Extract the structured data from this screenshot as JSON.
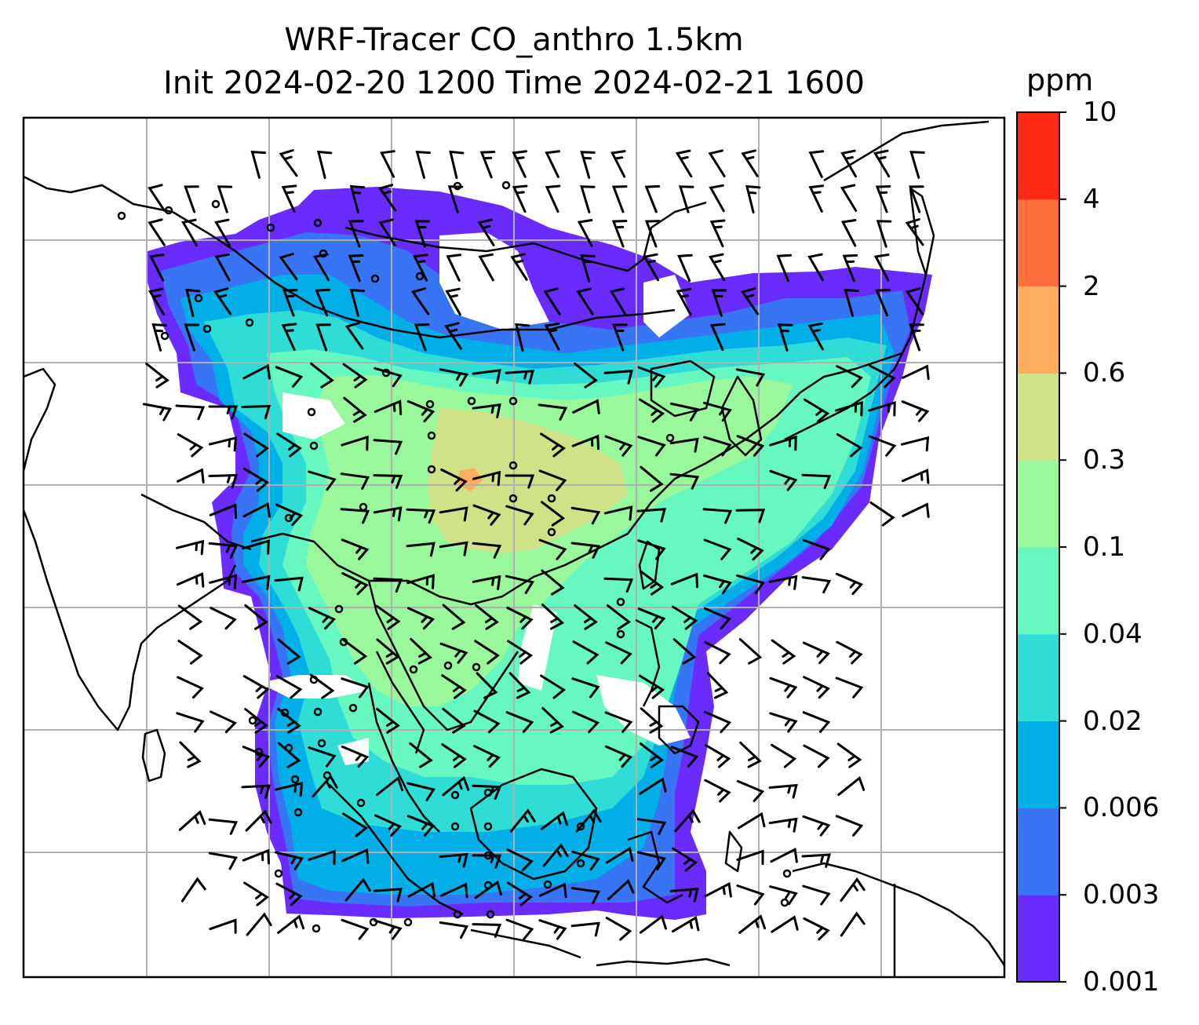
{
  "title": {
    "line1": "WRF-Tracer CO_anthro 1.5km",
    "line2": "Init 2024-02-20 1200 Time 2024-02-21 1600"
  },
  "colorbar": {
    "unit": "ppm",
    "levels": [
      "0.001",
      "0.003",
      "0.006",
      "0.02",
      "0.04",
      "0.1",
      "0.3",
      "0.6",
      "2",
      "4",
      "10"
    ],
    "colors": [
      "#6a2bff",
      "#3775f5",
      "#00aee8",
      "#30dcd6",
      "#66f8c0",
      "#99f79c",
      "#cfe287",
      "#ffad5f",
      "#ff6e3c",
      "#ff2a16"
    ]
  },
  "map": {
    "background": "#ffffff",
    "gridline_color": "#b0b0b0",
    "coastline_color": "#000000",
    "wind_marks": "wind barbs and calm circles"
  }
}
